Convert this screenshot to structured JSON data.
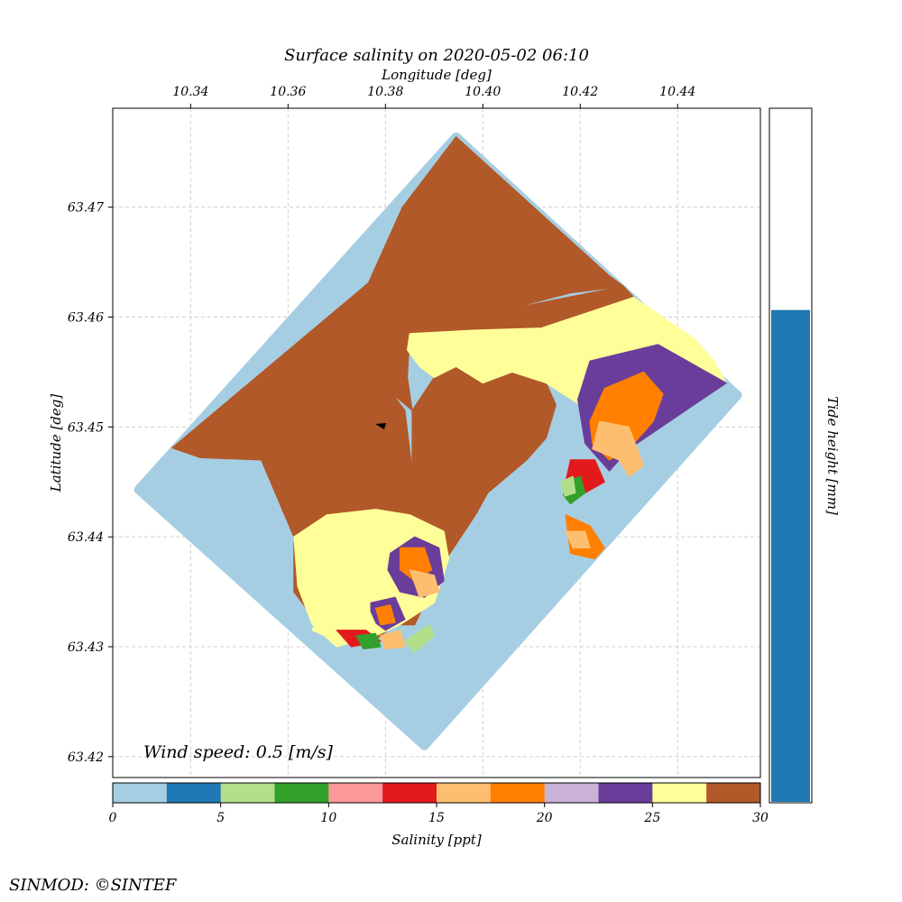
{
  "chart_data": {
    "type": "heatmap",
    "title": "Surface salinity on 2020-05-02 06:10",
    "xlabel": "Longitude [deg]",
    "ylabel": "Latitude [deg]",
    "x_ticks": [
      "10.34",
      "10.36",
      "10.38",
      "10.40",
      "10.42",
      "10.44"
    ],
    "x_tick_values": [
      10.34,
      10.36,
      10.38,
      10.4,
      10.42,
      10.44
    ],
    "y_ticks": [
      "63.42",
      "63.43",
      "63.44",
      "63.45",
      "63.46",
      "63.47"
    ],
    "y_tick_values": [
      63.42,
      63.43,
      63.44,
      63.45,
      63.46,
      63.47
    ],
    "xlim": [
      10.324,
      10.457
    ],
    "ylim": [
      63.4181,
      63.479
    ],
    "grid": true,
    "annotation": "Wind speed: 0.5 [m/s]",
    "domain_corners_lonlat": [
      [
        10.3945,
        63.4764
      ],
      [
        10.4523,
        63.4529
      ],
      [
        10.388,
        63.421
      ],
      [
        10.3293,
        63.4443
      ]
    ],
    "regions": [
      {
        "level": 30,
        "polygon": [
          [
            10.3945,
            63.4764
          ],
          [
            10.4261,
            63.4637
          ],
          [
            10.418,
            63.4628
          ],
          [
            10.406,
            63.4617
          ],
          [
            10.394,
            63.4632
          ],
          [
            10.388,
            63.4655
          ],
          [
            10.3835,
            63.47
          ]
        ]
      },
      {
        "level": 27.5,
        "polygon": [
          [
            10.3835,
            63.47
          ],
          [
            10.388,
            63.4655
          ],
          [
            10.394,
            63.4632
          ],
          [
            10.406,
            63.4617
          ],
          [
            10.418,
            63.4628
          ],
          [
            10.4261,
            63.4637
          ],
          [
            10.4289,
            63.4628
          ],
          [
            10.418,
            63.4622
          ],
          [
            10.405,
            63.4607
          ],
          [
            10.396,
            63.4615
          ],
          [
            10.39,
            63.4636
          ],
          [
            10.3765,
            63.4631
          ]
        ]
      },
      {
        "level": 30,
        "polygon": [
          [
            10.3765,
            63.4631
          ],
          [
            10.373,
            63.46
          ],
          [
            10.3725,
            63.456
          ],
          [
            10.3755,
            63.4528
          ],
          [
            10.3815,
            63.453
          ],
          [
            10.384,
            63.4515
          ],
          [
            10.3855,
            63.446
          ],
          [
            10.3815,
            63.4437
          ],
          [
            10.3715,
            63.4445
          ],
          [
            10.3655,
            63.4445
          ],
          [
            10.3625,
            63.442
          ],
          [
            10.3612,
            63.44
          ],
          [
            10.3545,
            63.447
          ],
          [
            10.342,
            63.4472
          ],
          [
            10.3362,
            63.4481
          ]
        ]
      },
      {
        "level": 27.5,
        "polygon": [
          [
            10.3765,
            63.4631
          ],
          [
            10.39,
            63.4636
          ],
          [
            10.396,
            63.4615
          ],
          [
            10.405,
            63.4607
          ],
          [
            10.4289,
            63.4628
          ],
          [
            10.431,
            63.4618
          ],
          [
            10.412,
            63.459
          ],
          [
            10.398,
            63.4588
          ],
          [
            10.385,
            63.4585
          ],
          [
            10.3845,
            63.4545
          ],
          [
            10.3855,
            63.4515
          ],
          [
            10.3855,
            63.446
          ],
          [
            10.3815,
            63.4437
          ],
          [
            10.3715,
            63.4445
          ],
          [
            10.3655,
            63.4445
          ],
          [
            10.3625,
            63.442
          ],
          [
            10.3612,
            63.44
          ],
          [
            10.3612,
            63.435
          ],
          [
            10.368,
            63.431
          ],
          [
            10.376,
            63.43
          ],
          [
            10.382,
            63.432
          ],
          [
            10.386,
            63.432
          ],
          [
            10.3925,
            63.438
          ],
          [
            10.3985,
            63.442
          ],
          [
            10.401,
            63.444
          ],
          [
            10.409,
            63.447
          ],
          [
            10.413,
            63.449
          ],
          [
            10.415,
            63.452
          ],
          [
            10.413,
            63.454
          ],
          [
            10.406,
            63.455
          ],
          [
            10.4,
            63.454
          ],
          [
            10.3945,
            63.4555
          ],
          [
            10.39,
            63.4545
          ],
          [
            10.3855,
            63.4515
          ],
          [
            10.3815,
            63.453
          ],
          [
            10.3755,
            63.4528
          ],
          [
            10.3725,
            63.456
          ],
          [
            10.373,
            63.46
          ]
        ]
      },
      {
        "level": 25,
        "polygon": [
          [
            10.385,
            63.4585
          ],
          [
            10.398,
            63.4588
          ],
          [
            10.412,
            63.459
          ],
          [
            10.431,
            63.4618
          ],
          [
            10.4435,
            63.458
          ],
          [
            10.4475,
            63.456
          ],
          [
            10.45,
            63.454
          ],
          [
            10.436,
            63.4575
          ],
          [
            10.422,
            63.456
          ],
          [
            10.42,
            63.452
          ],
          [
            10.413,
            63.454
          ],
          [
            10.406,
            63.455
          ],
          [
            10.4,
            63.454
          ],
          [
            10.3945,
            63.4555
          ],
          [
            10.39,
            63.4545
          ],
          [
            10.387,
            63.4555
          ],
          [
            10.3845,
            63.457
          ]
        ]
      },
      {
        "level": 22.5,
        "polygon": [
          [
            10.422,
            63.456
          ],
          [
            10.436,
            63.4575
          ],
          [
            10.45,
            63.454
          ],
          [
            10.44,
            63.451
          ],
          [
            10.43,
            63.448
          ],
          [
            10.426,
            63.446
          ],
          [
            10.421,
            63.4485
          ],
          [
            10.4195,
            63.4525
          ]
        ]
      },
      {
        "level": 17.5,
        "polygon": [
          [
            10.426,
            63.447
          ],
          [
            10.43,
            63.448
          ],
          [
            10.435,
            63.4505
          ],
          [
            10.437,
            63.453
          ],
          [
            10.433,
            63.455
          ],
          [
            10.425,
            63.4535
          ],
          [
            10.422,
            63.4505
          ],
          [
            10.4225,
            63.4485
          ]
        ]
      },
      {
        "level": 15,
        "polygon": [
          [
            10.4225,
            63.448
          ],
          [
            10.428,
            63.447
          ],
          [
            10.43,
            63.4455
          ],
          [
            10.433,
            63.4465
          ],
          [
            10.43,
            63.45
          ],
          [
            10.424,
            63.4505
          ]
        ]
      },
      {
        "level": 12.5,
        "polygon": [
          [
            10.418,
            63.447
          ],
          [
            10.423,
            63.447
          ],
          [
            10.425,
            63.445
          ],
          [
            10.421,
            63.444
          ],
          [
            10.417,
            63.445
          ]
        ]
      },
      {
        "level": 7.5,
        "polygon": [
          [
            10.417,
            63.445
          ],
          [
            10.42,
            63.4455
          ],
          [
            10.421,
            63.444
          ],
          [
            10.418,
            63.443
          ],
          [
            10.4165,
            63.4438
          ]
        ]
      },
      {
        "level": 17.5,
        "polygon": [
          [
            10.417,
            63.442
          ],
          [
            10.422,
            63.441
          ],
          [
            10.425,
            63.439
          ],
          [
            10.423,
            63.438
          ],
          [
            10.418,
            63.4385
          ]
        ]
      },
      {
        "level": 15,
        "polygon": [
          [
            10.417,
            63.4405
          ],
          [
            10.421,
            63.4405
          ],
          [
            10.422,
            63.439
          ],
          [
            10.4185,
            63.439
          ]
        ]
      },
      {
        "level": 25,
        "polygon": [
          [
            10.3612,
            63.44
          ],
          [
            10.368,
            63.442
          ],
          [
            10.378,
            63.4425
          ],
          [
            10.385,
            63.442
          ],
          [
            10.392,
            63.4405
          ],
          [
            10.393,
            63.438
          ],
          [
            10.39,
            63.434
          ],
          [
            10.383,
            63.432
          ],
          [
            10.378,
            63.431
          ],
          [
            10.37,
            63.43
          ],
          [
            10.365,
            63.432
          ],
          [
            10.362,
            63.4355
          ]
        ]
      },
      {
        "level": 22.5,
        "polygon": [
          [
            10.381,
            63.4385
          ],
          [
            10.386,
            63.44
          ],
          [
            10.391,
            63.439
          ],
          [
            10.392,
            63.436
          ],
          [
            10.388,
            63.4345
          ],
          [
            10.383,
            63.435
          ],
          [
            10.3805,
            63.437
          ]
        ]
      },
      {
        "level": 17.5,
        "polygon": [
          [
            10.383,
            63.439
          ],
          [
            10.388,
            63.439
          ],
          [
            10.3895,
            63.437
          ],
          [
            10.386,
            63.436
          ],
          [
            10.383,
            63.437
          ]
        ]
      },
      {
        "level": 15,
        "polygon": [
          [
            10.385,
            63.437
          ],
          [
            10.39,
            63.4365
          ],
          [
            10.391,
            63.435
          ],
          [
            10.387,
            63.4345
          ]
        ]
      },
      {
        "level": 22.5,
        "polygon": [
          [
            10.377,
            63.434
          ],
          [
            10.382,
            63.4345
          ],
          [
            10.384,
            63.4325
          ],
          [
            10.38,
            63.4315
          ],
          [
            10.377,
            63.4325
          ]
        ]
      },
      {
        "level": 17.5,
        "polygon": [
          [
            10.378,
            63.4335
          ],
          [
            10.381,
            63.4338
          ],
          [
            10.382,
            63.4322
          ],
          [
            10.379,
            63.432
          ]
        ]
      },
      {
        "level": 25,
        "polygon": [
          [
            10.368,
            63.434
          ],
          [
            10.376,
            63.434
          ],
          [
            10.378,
            63.432
          ],
          [
            10.37,
            63.4305
          ],
          [
            10.365,
            63.4315
          ]
        ]
      },
      {
        "level": 12.5,
        "polygon": [
          [
            10.37,
            63.4315
          ],
          [
            10.376,
            63.4315
          ],
          [
            10.379,
            63.4305
          ],
          [
            10.373,
            63.43
          ]
        ]
      },
      {
        "level": 15,
        "polygon": [
          [
            10.379,
            63.431
          ],
          [
            10.383,
            63.4315
          ],
          [
            10.384,
            63.43
          ],
          [
            10.38,
            63.4298
          ]
        ]
      },
      {
        "level": 7.5,
        "polygon": [
          [
            10.374,
            63.431
          ],
          [
            10.378,
            63.4312
          ],
          [
            10.379,
            63.43
          ],
          [
            10.3755,
            63.4298
          ]
        ]
      },
      {
        "level": 5,
        "polygon": [
          [
            10.384,
            63.4305
          ],
          [
            10.389,
            63.432
          ],
          [
            10.39,
            63.431
          ],
          [
            10.386,
            63.4295
          ]
        ]
      },
      {
        "level": 5,
        "polygon": [
          [
            10.416,
            63.445
          ],
          [
            10.4185,
            63.4455
          ],
          [
            10.419,
            63.444
          ],
          [
            10.4168,
            63.4437
          ]
        ]
      }
    ],
    "salinity_colorbar": {
      "label": "Salinity [ppt]",
      "vmin": 0,
      "vmax": 30,
      "tick_values": [
        0,
        5,
        10,
        15,
        20,
        25,
        30
      ],
      "tick_labels": [
        "0",
        "5",
        "10",
        "15",
        "20",
        "25",
        "30"
      ],
      "bin_edges": [
        0,
        2.5,
        5,
        7.5,
        10,
        12.5,
        15,
        17.5,
        20,
        22.5,
        25,
        27.5,
        30
      ],
      "colors": [
        "#a6cee3",
        "#1f78b4",
        "#b2df8a",
        "#33a02c",
        "#fb9a99",
        "#e31a1c",
        "#fdbf6f",
        "#ff7f00",
        "#cab2d6",
        "#6a3d9a",
        "#ffff99",
        "#b15928"
      ]
    },
    "tide_bar": {
      "label": "Tide height [mm]",
      "fill_fraction": 0.71,
      "color": "#1f78b4"
    }
  },
  "credit": "SINMOD: ©SINTEF"
}
